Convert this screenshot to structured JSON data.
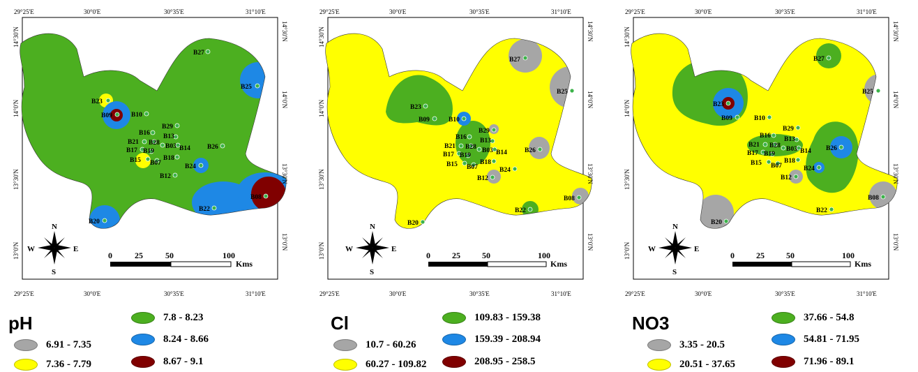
{
  "colors": {
    "gray": "#a6a6a6",
    "yellow": "#ffff00",
    "green": "#4caf20",
    "blue": "#1e88e5",
    "darkred": "#800000"
  },
  "axes": {
    "x_ticks": [
      "29°25'E",
      "30°0'E",
      "30°35'E",
      "31°10'E"
    ],
    "y_ticks": [
      "14°30'N",
      "14°0'N",
      "13°30'N",
      "13°0'N"
    ]
  },
  "scale_bar": {
    "labels": [
      "0",
      "25",
      "50",
      "100"
    ],
    "unit": "Kms"
  },
  "compass": {
    "n": "N",
    "s": "S",
    "e": "E",
    "w": "W"
  },
  "wells": [
    "B27",
    "B25",
    "B23",
    "B09",
    "B10",
    "B29",
    "B16",
    "B13",
    "B21",
    "B28",
    "B03",
    "B14",
    "B17",
    "B19",
    "B18",
    "B15",
    "B07",
    "B24",
    "B26",
    "B12",
    "B08",
    "B22",
    "B20"
  ],
  "maps": [
    {
      "title": "pH",
      "legend": [
        {
          "range": "6.91 - 7.35",
          "color": "gray"
        },
        {
          "range": "7.36 - 7.79",
          "color": "yellow"
        },
        {
          "range": "7.8 - 8.23",
          "color": "green"
        },
        {
          "range": "8.24 - 8.66",
          "color": "blue"
        },
        {
          "range": "8.67 - 9.1",
          "color": "darkred"
        }
      ]
    },
    {
      "title": "Cl",
      "legend": [
        {
          "range": "10.7 - 60.26",
          "color": "gray"
        },
        {
          "range": "60.27 - 109.82",
          "color": "yellow"
        },
        {
          "range": "109.83 - 159.38",
          "color": "green"
        },
        {
          "range": "159.39 - 208.94",
          "color": "blue"
        },
        {
          "range": "208.95 - 258.5",
          "color": "darkred"
        }
      ]
    },
    {
      "title": "NO3",
      "legend": [
        {
          "range": "3.35 - 20.5",
          "color": "gray"
        },
        {
          "range": "20.51 - 37.65",
          "color": "yellow"
        },
        {
          "range": "37.66 - 54.8",
          "color": "green"
        },
        {
          "range": "54.81 - 71.95",
          "color": "blue"
        },
        {
          "range": "71.96 - 89.1",
          "color": "darkred"
        }
      ]
    }
  ]
}
